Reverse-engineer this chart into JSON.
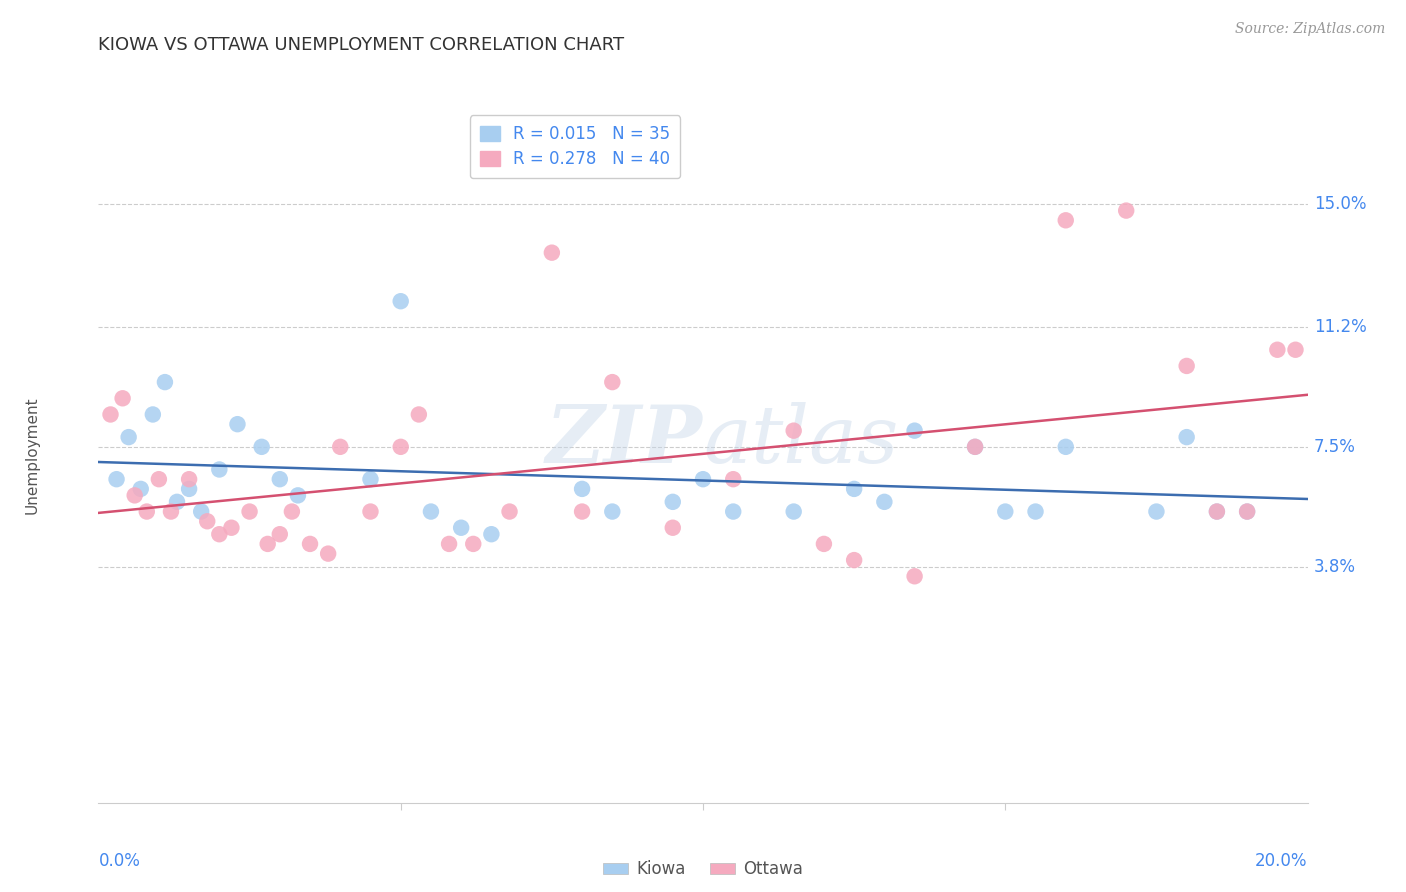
{
  "title": "KIOWA VS OTTAWA UNEMPLOYMENT CORRELATION CHART",
  "source": "Source: ZipAtlas.com",
  "ylabel": "Unemployment",
  "xlim": [
    0.0,
    20.0
  ],
  "ylim": [
    -3.5,
    18.0
  ],
  "kiowa_R": "0.015",
  "kiowa_N": 35,
  "ottawa_R": "0.278",
  "ottawa_N": 40,
  "kiowa_color": "#A8CEF0",
  "ottawa_color": "#F5AABF",
  "kiowa_line_color": "#3C6DB0",
  "ottawa_line_color": "#D45070",
  "axis_label_color": "#4488EE",
  "grid_color": "#CCCCCC",
  "title_color": "#333333",
  "source_color": "#999999",
  "background_color": "#FFFFFF",
  "ytick_values": [
    3.8,
    7.5,
    11.2,
    15.0
  ],
  "ytick_labels": [
    "3.8%",
    "7.5%",
    "11.2%",
    "15.0%"
  ],
  "kiowa_points": [
    [
      0.3,
      6.5
    ],
    [
      0.5,
      7.8
    ],
    [
      0.7,
      6.2
    ],
    [
      0.9,
      8.5
    ],
    [
      1.1,
      9.5
    ],
    [
      1.3,
      5.8
    ],
    [
      1.5,
      6.2
    ],
    [
      1.7,
      5.5
    ],
    [
      2.0,
      6.8
    ],
    [
      2.3,
      8.2
    ],
    [
      2.7,
      7.5
    ],
    [
      3.0,
      6.5
    ],
    [
      3.3,
      6.0
    ],
    [
      4.5,
      6.5
    ],
    [
      5.0,
      12.0
    ],
    [
      5.5,
      5.5
    ],
    [
      6.5,
      4.8
    ],
    [
      8.0,
      6.2
    ],
    [
      9.5,
      5.8
    ],
    [
      10.0,
      6.5
    ],
    [
      10.5,
      5.5
    ],
    [
      12.5,
      6.2
    ],
    [
      13.5,
      8.0
    ],
    [
      14.5,
      7.5
    ],
    [
      15.0,
      5.5
    ],
    [
      15.5,
      5.5
    ],
    [
      16.0,
      7.5
    ],
    [
      17.5,
      5.5
    ],
    [
      18.0,
      7.8
    ],
    [
      19.0,
      5.5
    ],
    [
      6.0,
      5.0
    ],
    [
      8.5,
      5.5
    ],
    [
      11.5,
      5.5
    ],
    [
      13.0,
      5.8
    ],
    [
      18.5,
      5.5
    ]
  ],
  "ottawa_points": [
    [
      0.2,
      8.5
    ],
    [
      0.4,
      9.0
    ],
    [
      0.6,
      6.0
    ],
    [
      0.8,
      5.5
    ],
    [
      1.0,
      6.5
    ],
    [
      1.2,
      5.5
    ],
    [
      1.5,
      6.5
    ],
    [
      1.8,
      5.2
    ],
    [
      2.0,
      4.8
    ],
    [
      2.2,
      5.0
    ],
    [
      2.5,
      5.5
    ],
    [
      2.8,
      4.5
    ],
    [
      3.0,
      4.8
    ],
    [
      3.2,
      5.5
    ],
    [
      3.5,
      4.5
    ],
    [
      3.8,
      4.2
    ],
    [
      4.0,
      7.5
    ],
    [
      4.5,
      5.5
    ],
    [
      5.0,
      7.5
    ],
    [
      5.3,
      8.5
    ],
    [
      5.8,
      4.5
    ],
    [
      6.2,
      4.5
    ],
    [
      6.8,
      5.5
    ],
    [
      7.5,
      13.5
    ],
    [
      8.0,
      5.5
    ],
    [
      8.5,
      9.5
    ],
    [
      9.5,
      5.0
    ],
    [
      10.5,
      6.5
    ],
    [
      11.5,
      8.0
    ],
    [
      12.0,
      4.5
    ],
    [
      12.5,
      4.0
    ],
    [
      13.5,
      3.5
    ],
    [
      14.5,
      7.5
    ],
    [
      16.0,
      14.5
    ],
    [
      17.0,
      14.8
    ],
    [
      18.0,
      10.0
    ],
    [
      18.5,
      5.5
    ],
    [
      19.0,
      5.5
    ],
    [
      19.5,
      10.5
    ],
    [
      19.8,
      10.5
    ]
  ]
}
